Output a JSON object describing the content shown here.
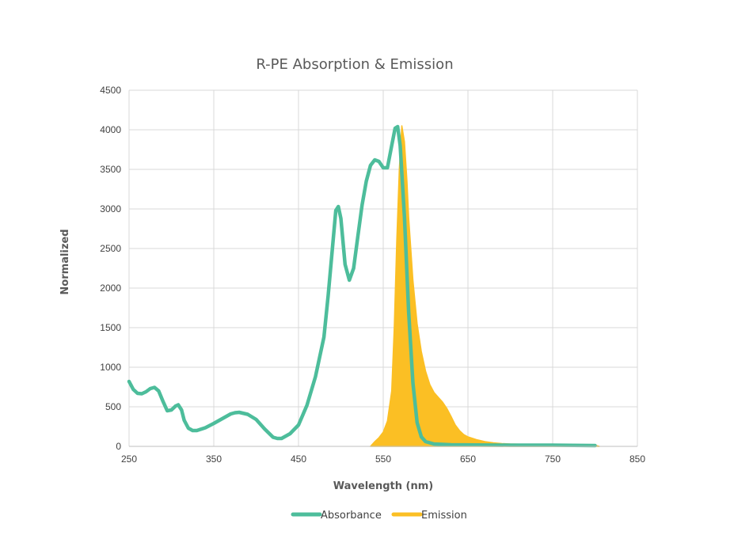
{
  "chart_data": {
    "type": "line",
    "title": "R-PE Absorption & Emission",
    "xlabel": "Wavelength (nm)",
    "ylabel": "Normalized",
    "xlim": [
      250,
      850
    ],
    "ylim": [
      0,
      4500
    ],
    "x_ticks": [
      250,
      350,
      450,
      550,
      650,
      750,
      850
    ],
    "x_tick_labels": [
      "250",
      "350",
      "450",
      "550",
      "650",
      "750",
      "850"
    ],
    "y_ticks": [
      0,
      500,
      1000,
      1500,
      2000,
      2500,
      3000,
      3500,
      4000,
      4500
    ],
    "y_tick_labels": [
      "0",
      "500",
      "1000",
      "1500",
      "2000",
      "2500",
      "3000",
      "3500",
      "4000",
      "4500"
    ],
    "grid": true,
    "legend_position": "bottom",
    "series": [
      {
        "name": "Absorbance",
        "color": "#4dbd9b",
        "style": "line",
        "points": [
          [
            250,
            820
          ],
          [
            255,
            720
          ],
          [
            260,
            670
          ],
          [
            265,
            665
          ],
          [
            270,
            690
          ],
          [
            275,
            730
          ],
          [
            280,
            745
          ],
          [
            285,
            700
          ],
          [
            290,
            570
          ],
          [
            295,
            450
          ],
          [
            300,
            460
          ],
          [
            305,
            510
          ],
          [
            308,
            525
          ],
          [
            312,
            460
          ],
          [
            315,
            330
          ],
          [
            320,
            230
          ],
          [
            325,
            200
          ],
          [
            330,
            200
          ],
          [
            340,
            235
          ],
          [
            350,
            290
          ],
          [
            360,
            350
          ],
          [
            370,
            410
          ],
          [
            375,
            425
          ],
          [
            380,
            430
          ],
          [
            390,
            405
          ],
          [
            400,
            340
          ],
          [
            410,
            220
          ],
          [
            420,
            115
          ],
          [
            425,
            100
          ],
          [
            430,
            100
          ],
          [
            440,
            160
          ],
          [
            450,
            270
          ],
          [
            460,
            520
          ],
          [
            470,
            880
          ],
          [
            480,
            1380
          ],
          [
            485,
            1900
          ],
          [
            490,
            2500
          ],
          [
            494,
            2980
          ],
          [
            497,
            3030
          ],
          [
            500,
            2880
          ],
          [
            505,
            2300
          ],
          [
            510,
            2100
          ],
          [
            515,
            2250
          ],
          [
            520,
            2650
          ],
          [
            525,
            3050
          ],
          [
            530,
            3350
          ],
          [
            535,
            3550
          ],
          [
            540,
            3620
          ],
          [
            545,
            3600
          ],
          [
            550,
            3520
          ],
          [
            555,
            3520
          ],
          [
            560,
            3800
          ],
          [
            564,
            4020
          ],
          [
            567,
            4040
          ],
          [
            570,
            3800
          ],
          [
            575,
            2900
          ],
          [
            580,
            1700
          ],
          [
            585,
            800
          ],
          [
            590,
            300
          ],
          [
            595,
            120
          ],
          [
            600,
            60
          ],
          [
            610,
            30
          ],
          [
            630,
            20
          ],
          [
            700,
            15
          ],
          [
            750,
            15
          ],
          [
            800,
            10
          ]
        ]
      },
      {
        "name": "Emission",
        "color": "#fbbf24",
        "style": "area",
        "points": [
          [
            535,
            0
          ],
          [
            540,
            60
          ],
          [
            545,
            110
          ],
          [
            550,
            180
          ],
          [
            555,
            320
          ],
          [
            560,
            700
          ],
          [
            563,
            1500
          ],
          [
            566,
            2600
          ],
          [
            569,
            3500
          ],
          [
            572,
            4050
          ],
          [
            575,
            3850
          ],
          [
            578,
            3350
          ],
          [
            580,
            2900
          ],
          [
            585,
            2100
          ],
          [
            590,
            1550
          ],
          [
            595,
            1200
          ],
          [
            600,
            950
          ],
          [
            605,
            780
          ],
          [
            610,
            680
          ],
          [
            615,
            620
          ],
          [
            620,
            560
          ],
          [
            625,
            480
          ],
          [
            630,
            380
          ],
          [
            635,
            270
          ],
          [
            640,
            200
          ],
          [
            645,
            150
          ],
          [
            650,
            120
          ],
          [
            660,
            85
          ],
          [
            670,
            60
          ],
          [
            680,
            45
          ],
          [
            690,
            35
          ],
          [
            700,
            30
          ],
          [
            720,
            25
          ],
          [
            740,
            22
          ],
          [
            760,
            20
          ],
          [
            780,
            18
          ],
          [
            800,
            15
          ],
          [
            805,
            0
          ]
        ]
      }
    ]
  }
}
